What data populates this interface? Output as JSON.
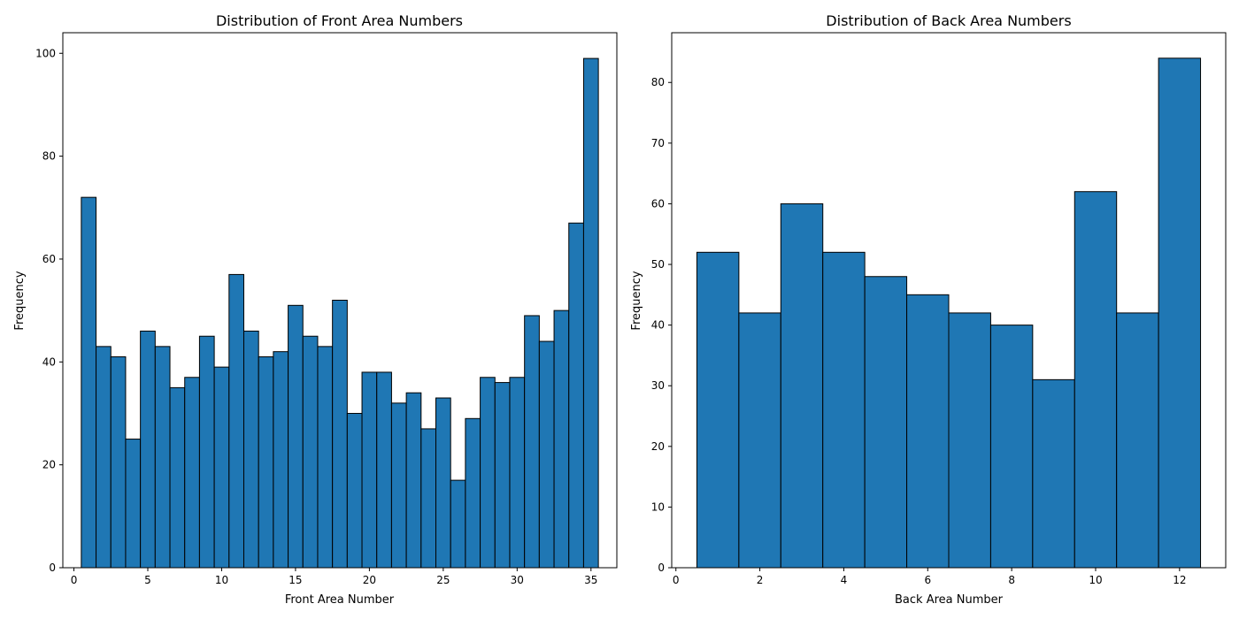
{
  "chart_data": [
    {
      "type": "bar",
      "title": "Distribution of Front Area Numbers",
      "xlabel": "Front Area Number",
      "ylabel": "Frequency",
      "xlim": [
        -0.75,
        36.75
      ],
      "ylim": [
        0,
        104
      ],
      "xticks": [
        0,
        5,
        10,
        15,
        20,
        25,
        30,
        35
      ],
      "yticks": [
        0,
        20,
        40,
        60,
        80,
        100
      ],
      "bar_color": "#1f77b4",
      "edge_color": "#000000",
      "categories": [
        1,
        2,
        3,
        4,
        5,
        6,
        7,
        8,
        9,
        10,
        11,
        12,
        13,
        14,
        15,
        16,
        17,
        18,
        19,
        20,
        21,
        22,
        23,
        24,
        25,
        26,
        27,
        28,
        29,
        30,
        31,
        32,
        33,
        34,
        35
      ],
      "values": [
        72,
        43,
        41,
        25,
        46,
        43,
        35,
        37,
        45,
        39,
        57,
        46,
        41,
        42,
        51,
        45,
        43,
        52,
        30,
        38,
        38,
        32,
        34,
        27,
        33,
        17,
        29,
        37,
        36,
        37,
        49,
        44,
        50,
        67,
        99
      ]
    },
    {
      "type": "bar",
      "title": "Distribution of Back Area Numbers",
      "xlabel": "Back Area Number",
      "ylabel": "Frequency",
      "xlim": [
        -0.1,
        13.1
      ],
      "ylim": [
        0,
        88.2
      ],
      "xticks": [
        0,
        2,
        4,
        6,
        8,
        10,
        12
      ],
      "yticks": [
        0,
        10,
        20,
        30,
        40,
        50,
        60,
        70,
        80
      ],
      "bar_color": "#1f77b4",
      "edge_color": "#000000",
      "categories": [
        1,
        2,
        3,
        4,
        5,
        6,
        7,
        8,
        9,
        10,
        11,
        12
      ],
      "values": [
        52,
        42,
        60,
        52,
        48,
        45,
        42,
        40,
        31,
        62,
        42,
        84
      ]
    }
  ]
}
